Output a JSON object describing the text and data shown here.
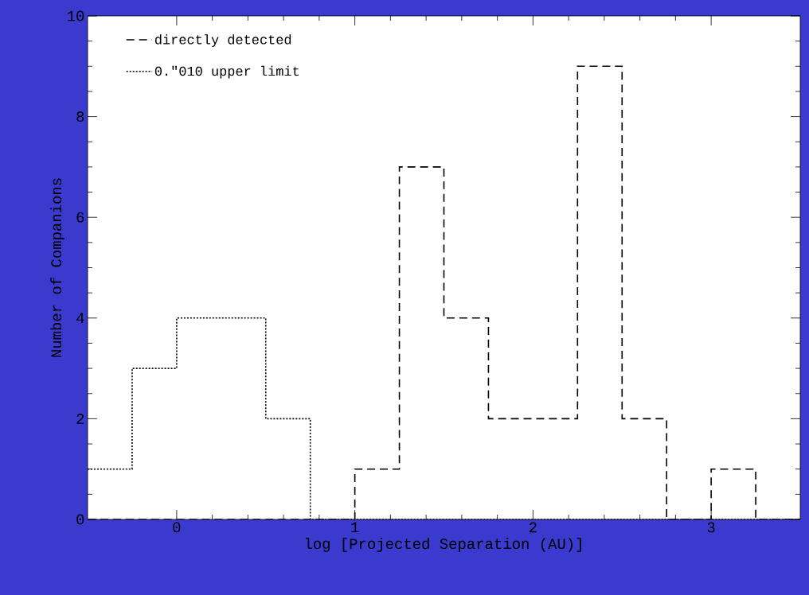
{
  "chart_data": {
    "type": "histogram",
    "xlabel": "log [Projected Separation (AU)]",
    "ylabel": "Number of Companions",
    "xlim": [
      -0.5,
      3.5
    ],
    "ylim": [
      0,
      10
    ],
    "xticks": [
      0,
      1,
      2,
      3
    ],
    "yticks": [
      0,
      2,
      4,
      6,
      8,
      10
    ],
    "grid": false,
    "legend": "top left",
    "bins": [
      -0.5,
      -0.25,
      0,
      0.25,
      0.5,
      0.75,
      1.0,
      1.25,
      1.5,
      1.75,
      2.0,
      2.25,
      2.5,
      2.75,
      3.0,
      3.25,
      3.5
    ],
    "series": [
      {
        "name": "directly detected",
        "color": "#000000",
        "line_style": "dashed",
        "values": [
          0,
          0,
          0,
          0,
          0,
          0,
          1,
          7,
          4,
          2,
          2,
          9,
          2,
          0,
          1,
          0
        ]
      },
      {
        "name": "0.″010 upper limit",
        "color": "#000000",
        "line_style": "dotted",
        "values": [
          1,
          3,
          4,
          4,
          2,
          0,
          0,
          0,
          0,
          0,
          0,
          0,
          0,
          0,
          0,
          0
        ]
      }
    ]
  }
}
